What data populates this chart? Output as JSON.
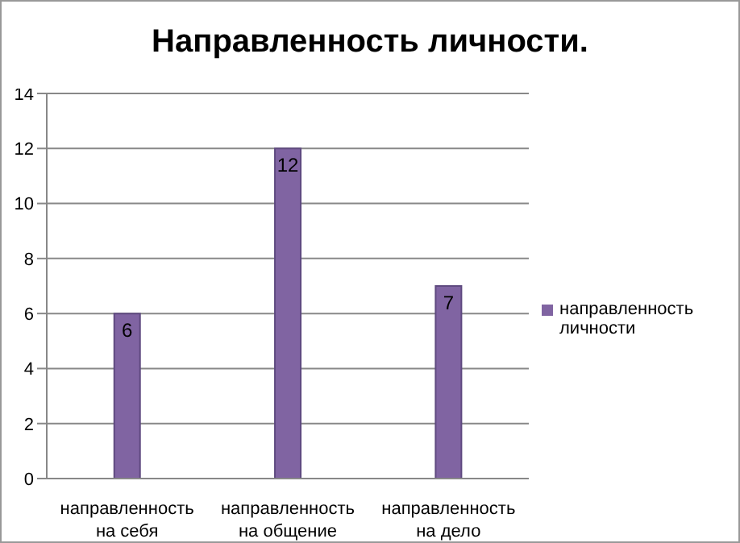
{
  "chart_data": {
    "type": "bar",
    "title": "Направленность личности.",
    "categories": [
      "направленность на себя",
      "направленность на общение",
      "направленность на дело"
    ],
    "series": [
      {
        "name": "направленность личности",
        "color": "#8064a2",
        "values": [
          6,
          12,
          7
        ]
      }
    ],
    "ylim": [
      0,
      14
    ],
    "yticks": [
      0,
      2,
      4,
      6,
      8,
      10,
      12,
      14
    ],
    "grid": "y",
    "legend": "right",
    "data_labels": true
  }
}
